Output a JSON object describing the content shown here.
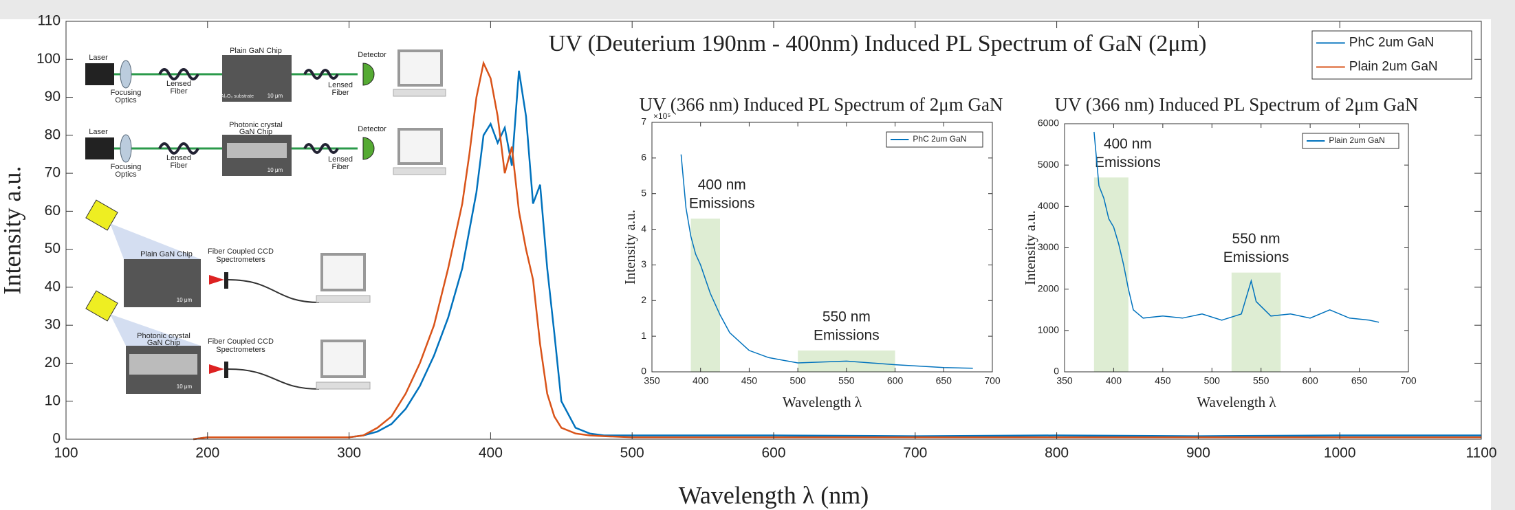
{
  "chart_data": [
    {
      "type": "line",
      "title": "UV (Deuterium 190nm - 400nm) Induced PL Spectrum of GaN (2μm)",
      "xlabel": "Wavelength λ (nm)",
      "ylabel": "Intensity a.u.",
      "x": [
        190,
        200,
        250,
        300,
        310,
        320,
        330,
        340,
        350,
        360,
        370,
        380,
        385,
        390,
        395,
        400,
        405,
        410,
        415,
        420,
        425,
        430,
        435,
        440,
        445,
        450,
        460,
        470,
        480,
        500,
        600,
        700,
        800,
        900,
        1000,
        1100
      ],
      "series": [
        {
          "name": "PhC 2um GaN",
          "color": "#0072bd",
          "values": [
            0,
            0.5,
            0.5,
            0.5,
            1,
            2,
            4,
            8,
            14,
            22,
            32,
            45,
            55,
            65,
            80,
            83,
            78,
            82,
            72,
            97,
            85,
            62,
            67,
            45,
            28,
            10,
            3,
            1.5,
            1,
            1,
            1,
            0.8,
            1,
            0.8,
            1,
            1
          ]
        },
        {
          "name": "Plain 2um GaN",
          "color": "#d95319",
          "values": [
            0,
            0.5,
            0.5,
            0.5,
            1,
            3,
            6,
            12,
            20,
            30,
            45,
            62,
            75,
            90,
            99,
            95,
            85,
            70,
            77,
            60,
            50,
            42,
            25,
            12,
            6,
            3,
            1.5,
            1,
            0.8,
            0.5,
            0.5,
            0.5,
            0.5,
            0.5,
            0.5,
            0.5
          ]
        }
      ],
      "xlim": [
        100,
        1100
      ],
      "xticks": [
        100,
        200,
        300,
        400,
        500,
        600,
        700,
        800,
        900,
        1000,
        1100
      ],
      "ylim": [
        0,
        110
      ],
      "yticks": [
        0,
        10,
        20,
        30,
        40,
        50,
        60,
        70,
        80,
        90,
        100,
        110
      ],
      "grid": false,
      "legend": "upper right"
    },
    {
      "type": "line",
      "title": "UV (366 nm) Induced PL Spectrum of 2μm GaN",
      "xlabel": "Wavelength λ",
      "ylabel": "Intensity a.u.",
      "y_multiplier": "×10⁵",
      "x": [
        380,
        385,
        390,
        395,
        400,
        405,
        410,
        420,
        430,
        450,
        470,
        500,
        550,
        600,
        650,
        680
      ],
      "series": [
        {
          "name": "PhC 2um GaN",
          "color": "#0072bd",
          "values": [
            6.1,
            4.6,
            3.8,
            3.3,
            3.0,
            2.6,
            2.2,
            1.6,
            1.1,
            0.6,
            0.4,
            0.25,
            0.3,
            0.2,
            0.12,
            0.1
          ]
        }
      ],
      "xlim": [
        350,
        700
      ],
      "xticks": [
        350,
        400,
        450,
        500,
        550,
        600,
        650,
        700
      ],
      "ylim": [
        0,
        7
      ],
      "yticks": [
        0,
        1,
        2,
        3,
        4,
        5,
        6,
        7
      ],
      "highlights": [
        {
          "x": [
            390,
            420
          ],
          "top": 4.3,
          "label": [
            "400 nm",
            "Emissions"
          ]
        },
        {
          "x": [
            500,
            600
          ],
          "top": 0.6,
          "label": [
            "550 nm",
            "Emissions"
          ]
        }
      ],
      "grid": false,
      "legend": "upper right"
    },
    {
      "type": "line",
      "title": "UV (366 nm) Induced PL Spectrum of 2μm GaN",
      "xlabel": "Wavelength λ",
      "ylabel": "Intensity a.u.",
      "x": [
        380,
        385,
        390,
        395,
        400,
        405,
        410,
        415,
        420,
        430,
        450,
        470,
        490,
        510,
        530,
        540,
        545,
        560,
        580,
        600,
        620,
        640,
        660,
        670
      ],
      "series": [
        {
          "name": "Plain 2um GaN",
          "color": "#0072bd",
          "values": [
            5800,
            4500,
            4200,
            3700,
            3500,
            3100,
            2600,
            2000,
            1500,
            1300,
            1350,
            1300,
            1400,
            1250,
            1400,
            2200,
            1700,
            1350,
            1400,
            1300,
            1500,
            1300,
            1250,
            1200
          ]
        }
      ],
      "xlim": [
        350,
        700
      ],
      "xticks": [
        350,
        400,
        450,
        500,
        550,
        600,
        650,
        700
      ],
      "ylim": [
        0,
        6000
      ],
      "yticks": [
        0,
        1000,
        2000,
        3000,
        4000,
        5000,
        6000
      ],
      "highlights": [
        {
          "x": [
            380,
            415
          ],
          "top": 4700,
          "label": [
            "400 nm",
            "Emissions"
          ]
        },
        {
          "x": [
            520,
            570
          ],
          "top": 2400,
          "label": [
            "550 nm",
            "Emissions"
          ]
        }
      ],
      "grid": false,
      "legend": "upper right"
    }
  ],
  "setup": {
    "laser": "Laser",
    "focusing_optics": [
      "Focusing",
      "Optics"
    ],
    "lensed_fiber": [
      "Lensed",
      "Fiber"
    ],
    "plain_chip": "Plain GaN Chip",
    "phc_chip": [
      "Photonic crystal",
      "GaN Chip"
    ],
    "detector": "Detector",
    "ccd": [
      "Fiber Coupled CCD",
      "Spectrometers"
    ],
    "scale_bar": "10 μm",
    "substrate": "Al₂O₃ substrate"
  }
}
